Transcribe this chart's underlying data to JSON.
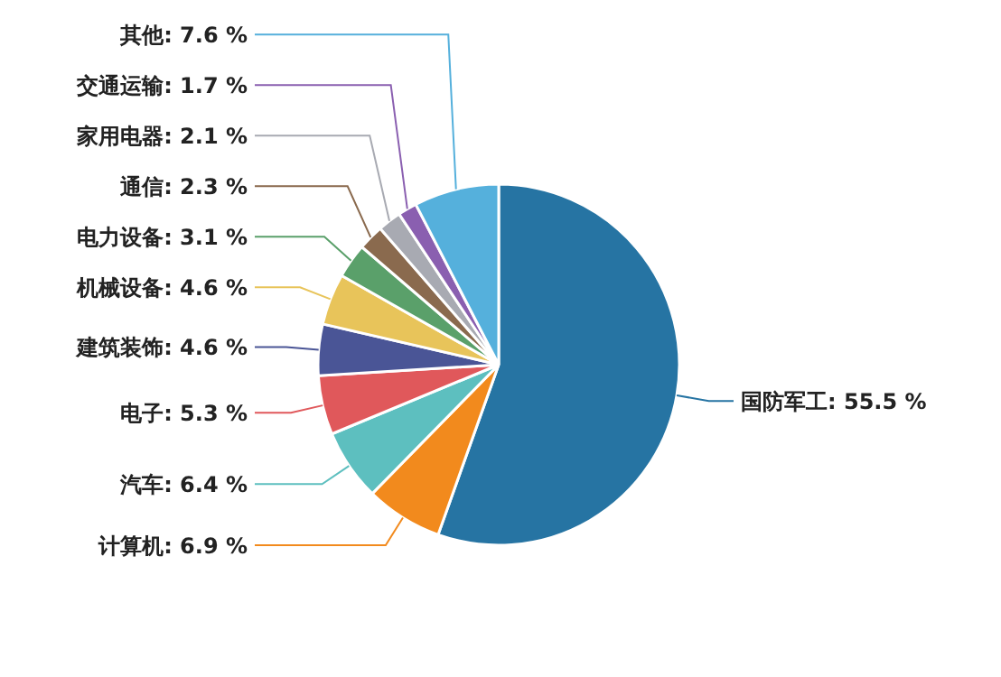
{
  "chart_data": {
    "type": "pie",
    "categories": [
      "国防军工",
      "计算机",
      "汽车",
      "电子",
      "建筑装饰",
      "机械设备",
      "电力设备",
      "通信",
      "家用电器",
      "交通运输",
      "其他"
    ],
    "values": [
      55.5,
      6.9,
      6.4,
      5.3,
      4.6,
      4.6,
      3.1,
      2.3,
      2.1,
      1.7,
      7.6
    ],
    "value_labels": [
      "55.5 %",
      "6.9 %",
      "6.4 %",
      "5.3 %",
      "4.6 %",
      "4.6 %",
      "3.1 %",
      "2.3 %",
      "2.1 %",
      "1.7 %",
      "7.6 %"
    ],
    "colors": [
      "#2674a3",
      "#f28a1d",
      "#5dbfbf",
      "#e0585b",
      "#4a5596",
      "#e8c45a",
      "#5aa06a",
      "#8a6a4e",
      "#a8aab2",
      "#8a5fb0",
      "#55b0dc"
    ]
  }
}
